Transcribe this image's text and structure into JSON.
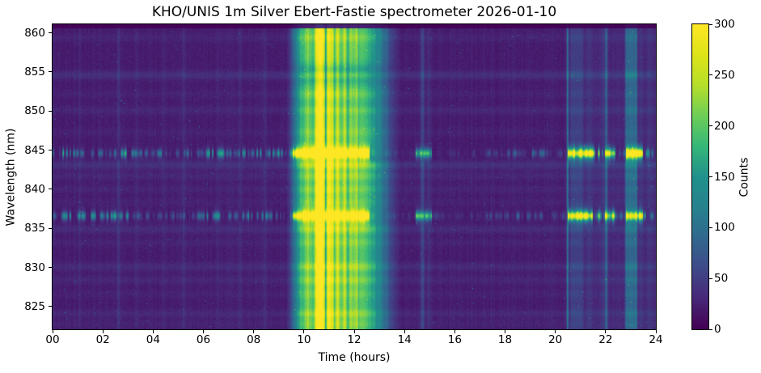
{
  "chart_data": {
    "type": "heatmap",
    "title": "KHO/UNIS 1m Silver Ebert-Fastie spectrometer 2026-01-10",
    "xlabel": "Time (hours)",
    "ylabel": "Wavelength (nm)",
    "colorbar_label": "Counts",
    "colormap": "viridis",
    "grid": false,
    "xlim": [
      0,
      24
    ],
    "ylim": [
      822.1,
      861.1
    ],
    "zlim": [
      0,
      300
    ],
    "x_tick_labels": [
      "00",
      "02",
      "04",
      "06",
      "08",
      "10",
      "12",
      "14",
      "16",
      "18",
      "20",
      "22",
      "24"
    ],
    "x_tick_values": [
      0,
      2,
      4,
      6,
      8,
      10,
      12,
      14,
      16,
      18,
      20,
      22,
      24
    ],
    "y_tick_values": [
      825,
      830,
      835,
      840,
      845,
      850,
      855,
      860
    ],
    "colorbar_tick_values": [
      0,
      50,
      100,
      150,
      200,
      250,
      300
    ],
    "background_counts": 21,
    "airglow_bands": [
      [
        859.4,
        7
      ],
      [
        854.6,
        16
      ],
      [
        852.2,
        5
      ],
      [
        850.1,
        9
      ],
      [
        847.3,
        5
      ],
      [
        843.1,
        17
      ],
      [
        841.7,
        9
      ],
      [
        840.0,
        7
      ],
      [
        838.4,
        5
      ],
      [
        834.9,
        13
      ],
      [
        833.2,
        6
      ],
      [
        830.1,
        12
      ],
      [
        828.4,
        9
      ],
      [
        826.6,
        5
      ],
      [
        824.1,
        10
      ],
      [
        822.8,
        6
      ]
    ],
    "emission_lines": [
      {
        "wavelength": 844.6,
        "relative_strength": 1.0
      },
      {
        "wavelength": 836.6,
        "relative_strength": 0.85
      }
    ],
    "emission_segments": [
      [
        0.0,
        9.55,
        70
      ],
      [
        9.55,
        12.62,
        240
      ],
      [
        12.62,
        14.45,
        14
      ],
      [
        14.45,
        15.1,
        190
      ],
      [
        15.1,
        17.25,
        20
      ],
      [
        17.25,
        19.6,
        45
      ],
      [
        19.6,
        20.5,
        26
      ],
      [
        20.5,
        21.5,
        290
      ],
      [
        21.5,
        21.98,
        120
      ],
      [
        21.98,
        22.38,
        290
      ],
      [
        22.38,
        22.82,
        70
      ],
      [
        22.82,
        23.5,
        300
      ],
      [
        23.5,
        24.01,
        60
      ]
    ],
    "daylight_band": {
      "level": 168,
      "rise": [
        9.25,
        10.05
      ],
      "fall": [
        12.25,
        13.95
      ],
      "columns": [
        [
          10.15,
          0.1,
          0.15
        ],
        [
          10.55,
          0.1,
          0.55
        ],
        [
          10.72,
          0.08,
          0.75
        ],
        [
          11.02,
          0.09,
          0.65
        ],
        [
          11.35,
          0.08,
          0.3
        ],
        [
          11.62,
          0.06,
          0.22
        ],
        [
          11.9,
          0.07,
          0.12
        ],
        [
          12.1,
          0.05,
          0.1
        ],
        [
          10.87,
          0.022,
          -0.52
        ],
        [
          10.35,
          0.05,
          -0.12
        ],
        [
          11.2,
          0.03,
          -0.1
        ],
        [
          11.5,
          0.04,
          -0.12
        ],
        [
          11.75,
          0.05,
          -0.1
        ]
      ],
      "absorption_rows": [
        [
          854.7,
          0.9,
          0.3
        ],
        [
          850.3,
          0.8,
          0.08
        ],
        [
          843.9,
          0.45,
          0.12
        ]
      ]
    },
    "vertical_events": [
      [
        1.08,
        0.05,
        8,
        "g"
      ],
      [
        2.62,
        0.05,
        16,
        "g"
      ],
      [
        3.35,
        0.05,
        6,
        "g"
      ],
      [
        4.42,
        0.05,
        7,
        "g"
      ],
      [
        5.22,
        0.05,
        10,
        "g"
      ],
      [
        6.55,
        0.05,
        6,
        "g"
      ],
      [
        7.45,
        0.05,
        7,
        "g"
      ],
      [
        8.45,
        0.06,
        9,
        "g"
      ],
      [
        14.72,
        0.05,
        34,
        "g"
      ],
      [
        14.98,
        0.06,
        12,
        "g"
      ],
      [
        20.49,
        0.025,
        80,
        "g"
      ],
      [
        20.85,
        0.3,
        20,
        "b"
      ],
      [
        21.35,
        0.1,
        9,
        "g"
      ],
      [
        21.9,
        0.07,
        10,
        "g"
      ],
      [
        22.03,
        0.04,
        46,
        "g"
      ],
      [
        23.02,
        0.28,
        58,
        "b"
      ],
      [
        23.4,
        0.06,
        12,
        "g"
      ],
      [
        23.75,
        0.07,
        9,
        "g"
      ]
    ],
    "night_glow_after": [
      20.45,
      8
    ]
  }
}
